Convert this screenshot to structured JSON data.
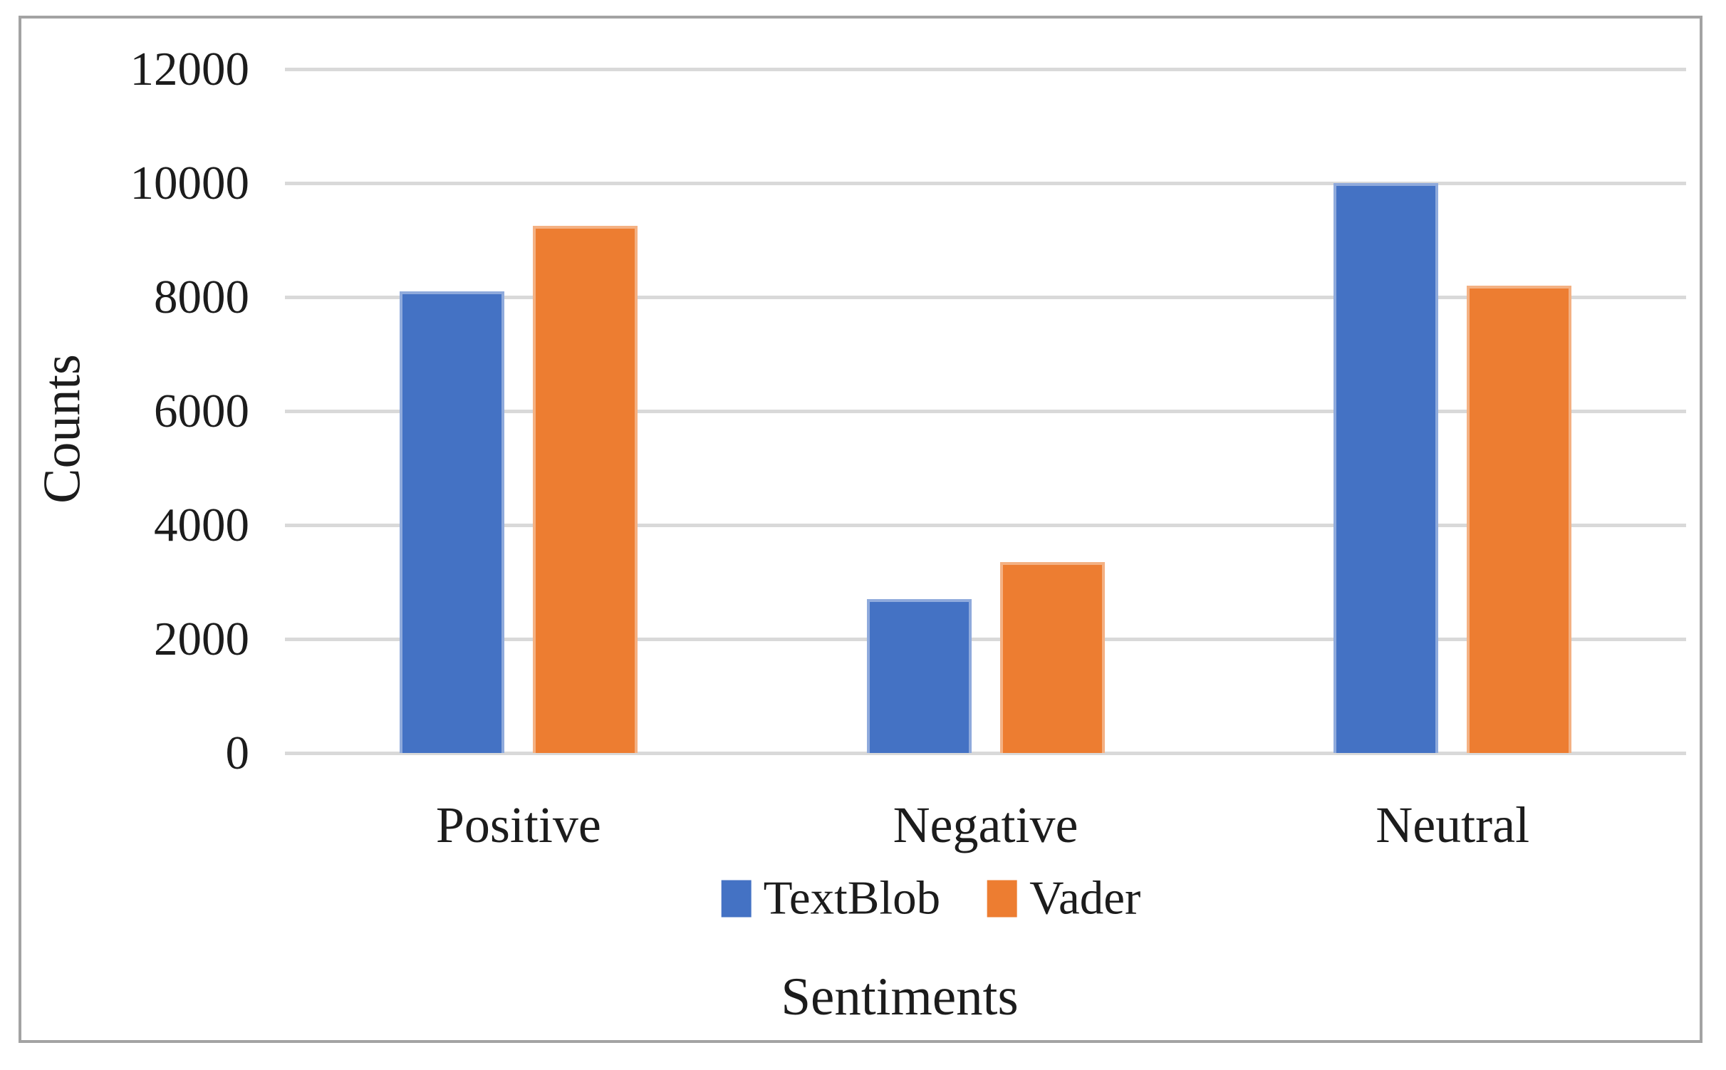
{
  "figure": {
    "background_color": "#ffffff",
    "frame_border_color": "#a3a3a3",
    "gridline_color": "#d9d9d9",
    "text_color": "#1c1c1c"
  },
  "chart_data": {
    "type": "bar",
    "title": "",
    "categories": [
      "Positive",
      "Negative",
      "Neutral"
    ],
    "series": [
      {
        "name": "TextBlob",
        "color": "#4472C4",
        "edge_color": "#8FAADC",
        "values": [
          8100,
          2700,
          10000
        ]
      },
      {
        "name": "Vader",
        "color": "#ED7D31",
        "edge_color": "#F4B183",
        "values": [
          9250,
          3350,
          8200
        ]
      }
    ],
    "xlabel": "Sentiments",
    "ylabel": "Counts",
    "ylim": [
      0,
      12000
    ],
    "yticks": [
      0,
      2000,
      4000,
      6000,
      8000,
      10000,
      12000
    ],
    "grid": true,
    "legend_position": "bottom"
  }
}
